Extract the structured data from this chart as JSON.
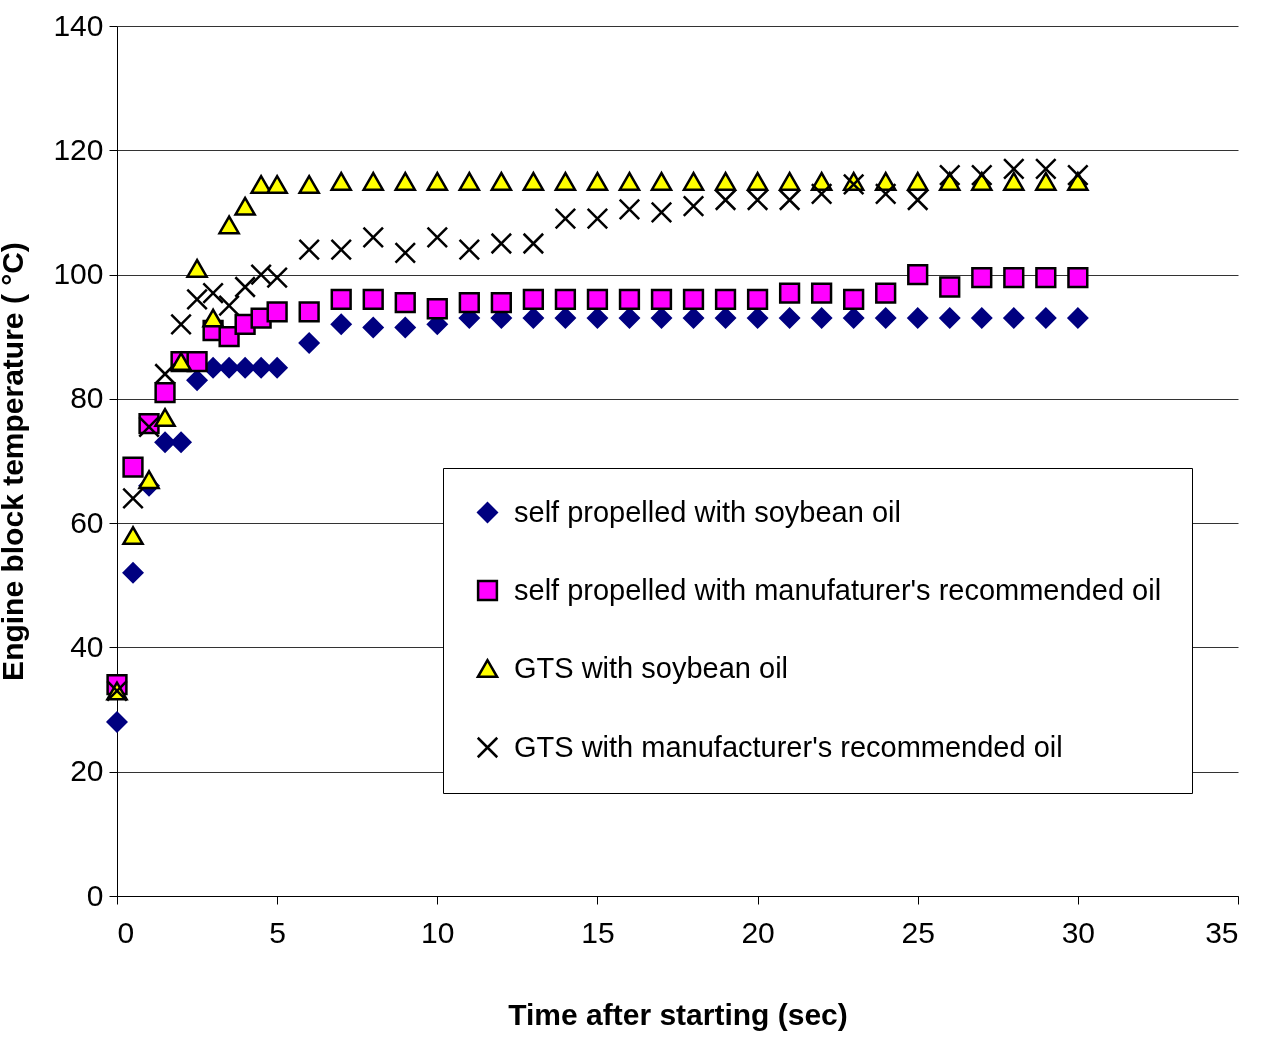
{
  "chart_data": {
    "type": "scatter",
    "xlabel": "Time after starting (sec)",
    "ylabel": "Engine block temperature ( °C)",
    "x": [
      0,
      0.5,
      1,
      1.5,
      2,
      2.5,
      3,
      3.5,
      4,
      4.5,
      5,
      6,
      7,
      8,
      9,
      10,
      11,
      12,
      13,
      14,
      15,
      16,
      17,
      18,
      19,
      20,
      21,
      22,
      23,
      24,
      25,
      26,
      27,
      28,
      29,
      30
    ],
    "series": [
      {
        "name": "self propelled with soybean oil",
        "color": "#000080",
        "marker": "diamond",
        "values": [
          28,
          52,
          66,
          73,
          73,
          83,
          85,
          85,
          85,
          85,
          85,
          89,
          92,
          91.5,
          91.5,
          92,
          93,
          93,
          93,
          93,
          93,
          93,
          93,
          93,
          93,
          93,
          93,
          93,
          93,
          93,
          93,
          93,
          93,
          93,
          93,
          93
        ]
      },
      {
        "name": "self propelled with manufaturer's recommended oil",
        "color": "#ff00ff",
        "marker": "square",
        "values": [
          34,
          69,
          76,
          81,
          86,
          86,
          91,
          90,
          92,
          93,
          94,
          94,
          96,
          96,
          95.5,
          94.5,
          95.5,
          95.5,
          96,
          96,
          96,
          96,
          96,
          96,
          96,
          96,
          97,
          97,
          96,
          97,
          100,
          98,
          99.5,
          99.5,
          99.5,
          99.5
        ]
      },
      {
        "name": "GTS with soybean oil",
        "color": "#ffff00",
        "marker": "triangle",
        "values": [
          33,
          58,
          67,
          77,
          86,
          101,
          93,
          108,
          111,
          114.5,
          114.5,
          114.5,
          115,
          115,
          115,
          115,
          115,
          115,
          115,
          115,
          115,
          115,
          115,
          115,
          115,
          115,
          115,
          115,
          115,
          115,
          115,
          115,
          115,
          115,
          115,
          115
        ]
      },
      {
        "name": "GTS with manufacturer's recommended oil",
        "color": "#000000",
        "marker": "cross",
        "values": [
          33,
          64,
          75.5,
          84,
          92,
          96,
          97,
          95,
          98,
          100,
          99.5,
          104,
          104,
          106,
          103.5,
          106,
          104,
          105,
          105,
          109,
          109,
          110.5,
          110,
          111,
          112,
          112,
          112,
          113,
          114.5,
          113,
          112,
          116,
          116,
          117,
          117,
          116
        ]
      }
    ],
    "xlim": [
      0,
      35
    ],
    "xticks": [
      0,
      5,
      10,
      15,
      20,
      25,
      30,
      35
    ],
    "ylim": [
      0,
      140
    ],
    "yticks": [
      0,
      20,
      40,
      60,
      80,
      100,
      120,
      140
    ],
    "grid": "y",
    "legend": "bottom right"
  }
}
